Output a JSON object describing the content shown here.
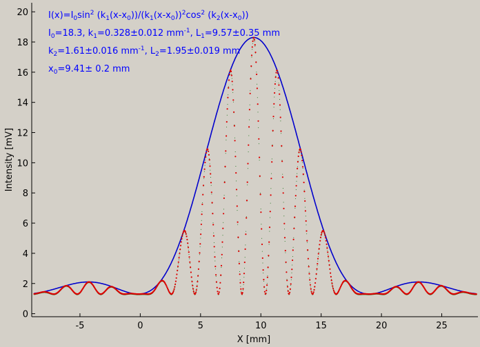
{
  "chart_data": {
    "type": "scatter",
    "title": "",
    "xlabel": "X [mm]",
    "ylabel": "Intensity [mV]",
    "xlim": [
      -9,
      28
    ],
    "ylim": [
      -0.2,
      20.6
    ],
    "xticks": [
      -5,
      0,
      5,
      10,
      15,
      20,
      25
    ],
    "yticks": [
      0,
      2,
      4,
      6,
      8,
      10,
      12,
      14,
      16,
      18,
      20
    ],
    "grid": false,
    "legend": "none",
    "fit_params": {
      "I0": 18.3,
      "k1": 0.328,
      "k2": 1.61,
      "x0": 9.41,
      "baseline": 1.3
    },
    "series": [
      {
        "kind": "envelope-fit",
        "color": "#0000cc"
      },
      {
        "kind": "measured",
        "color": "#dd0000"
      },
      {
        "kind": "fit",
        "color": "#006600"
      }
    ]
  },
  "annotation": {
    "formula_a": "I(x)=I",
    "formula_b": "sin",
    "formula_c": " (k",
    "formula_d": "(x-x",
    "formula_e": "))/(k",
    "formula_f": "(x-x",
    "formula_g": "))",
    "formula_h": "cos",
    "formula_i": " (k",
    "formula_j": "(x-x",
    "formula_k": "))",
    "sub_0": "0",
    "sub_1": "1",
    "sub_2": "2",
    "sup_2": "2",
    "sup_m1": "-1",
    "l1_I0": "=18.3,  k",
    "l1_k1": "=0.328±0.012 mm",
    "l1_mid": ",   L",
    "l1_L1": "=9.57±0.35 mm",
    "l2_k2": "=1.61±0.016 mm",
    "l2_mid": ",   L",
    "l2_L2": "=1.95±0.019 mm",
    "l3_a": "x",
    "l3_b": "=9.41±   0.2 mm",
    "k": "k",
    "I": "I"
  },
  "colors": {
    "background": "#d4d0c8",
    "annotation": "#0000ff",
    "envelope": "#0000cc",
    "measured": "#dd0000",
    "fit": "#006600"
  }
}
